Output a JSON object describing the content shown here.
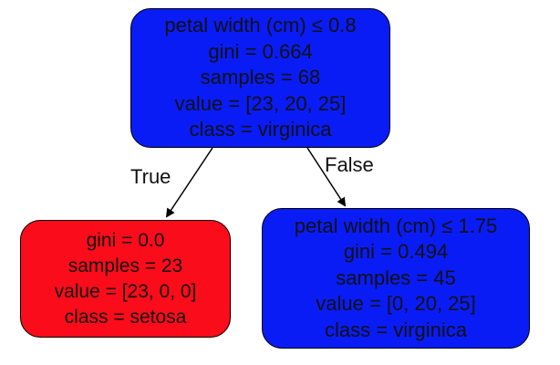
{
  "colors": {
    "virginica": "#0a1cf5",
    "setosa": "#fb0c1a",
    "border": "#000000",
    "text": "#111111"
  },
  "nodes": {
    "root": {
      "lines": [
        "petal width (cm) ≤ 0.8",
        "gini = 0.664",
        "samples = 68",
        "value = [23, 20, 25]",
        "class = virginica"
      ],
      "class": "virginica"
    },
    "left": {
      "lines": [
        "gini = 0.0",
        "samples = 23",
        "value = [23, 0, 0]",
        "class = setosa"
      ],
      "class": "setosa"
    },
    "right": {
      "lines": [
        "petal width (cm) ≤ 1.75",
        "gini = 0.494",
        "samples = 45",
        "value = [0, 20, 25]",
        "class = virginica"
      ],
      "class": "virginica"
    }
  },
  "edges": {
    "true_label": "True",
    "false_label": "False"
  }
}
